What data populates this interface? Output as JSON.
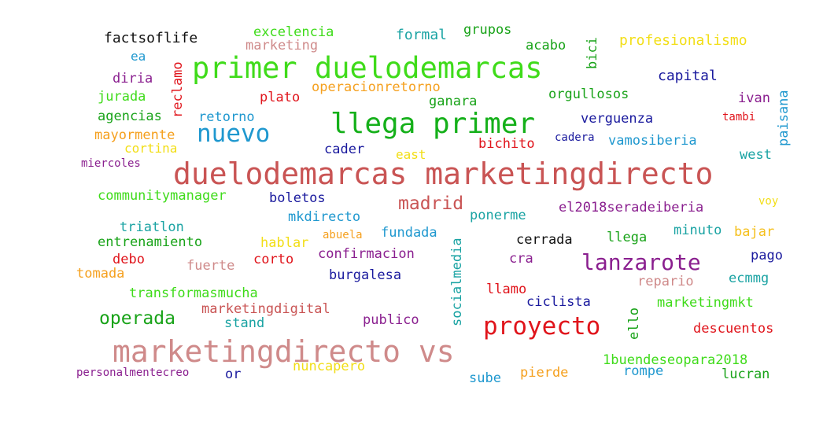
{
  "words": [
    {
      "text": "duelodemarcas marketingdirecto",
      "color": "#c95454"
    },
    {
      "text": "marketingdirecto vs",
      "color": "#cf8a8a"
    },
    {
      "text": "primer duelodemarcas",
      "color": "#3fdb1a"
    },
    {
      "text": "llega primer",
      "color": "#15b01a"
    },
    {
      "text": "nuevo",
      "color": "#1f98cf"
    },
    {
      "text": "proyecto",
      "color": "#e0141b"
    },
    {
      "text": "lanzarote",
      "color": "#8a1f8f"
    },
    {
      "text": "madrid",
      "color": "#c95454"
    },
    {
      "text": "operada",
      "color": "#19a319"
    },
    {
      "text": "factsoflife",
      "color": "#111111"
    },
    {
      "text": "excelencia",
      "color": "#3fdb1a"
    },
    {
      "text": "marketing",
      "color": "#cf8a8a"
    },
    {
      "text": "formal",
      "color": "#1aa3a3"
    },
    {
      "text": "grupos",
      "color": "#19a319"
    },
    {
      "text": "acabo",
      "color": "#19a319"
    },
    {
      "text": "bici",
      "color": "#19a319"
    },
    {
      "text": "profesionalismo",
      "color": "#f2de16"
    },
    {
      "text": "ea",
      "color": "#1f98cf"
    },
    {
      "text": "reclamo",
      "color": "#e0141b"
    },
    {
      "text": "diria",
      "color": "#8a1f8f"
    },
    {
      "text": "jurada",
      "color": "#3fdb1a"
    },
    {
      "text": "operacionretorno",
      "color": "#f5a01e"
    },
    {
      "text": "plato",
      "color": "#e0141b"
    },
    {
      "text": "ganara",
      "color": "#19a319"
    },
    {
      "text": "orgullosos",
      "color": "#19a319"
    },
    {
      "text": "capital",
      "color": "#1a1a9e"
    },
    {
      "text": "ivan",
      "color": "#8a1f8f"
    },
    {
      "text": "paisana",
      "color": "#1f98cf"
    },
    {
      "text": "agencias",
      "color": "#19a319"
    },
    {
      "text": "retorno",
      "color": "#1f98cf"
    },
    {
      "text": "verguenza",
      "color": "#1a1a9e"
    },
    {
      "text": "tambi",
      "color": "#e0141b"
    },
    {
      "text": "mayormente",
      "color": "#f5a01e"
    },
    {
      "text": "cortina",
      "color": "#f2de16"
    },
    {
      "text": "cader",
      "color": "#1a1a9e"
    },
    {
      "text": "bichito",
      "color": "#e0141b"
    },
    {
      "text": "cadera",
      "color": "#1a1a9e"
    },
    {
      "text": "vamosiberia",
      "color": "#1f98cf"
    },
    {
      "text": "east",
      "color": "#f2de16"
    },
    {
      "text": "west",
      "color": "#1aa3a3"
    },
    {
      "text": "miercoles",
      "color": "#8a1f8f"
    },
    {
      "text": "communitymanager",
      "color": "#3fdb1a"
    },
    {
      "text": "boletos",
      "color": "#1a1a9e"
    },
    {
      "text": "voy",
      "color": "#f2de16"
    },
    {
      "text": "mkdirecto",
      "color": "#1f98cf"
    },
    {
      "text": "ponerme",
      "color": "#1aa3a3"
    },
    {
      "text": "el2018seradeiberia",
      "color": "#8a1f8f"
    },
    {
      "text": "triatlon",
      "color": "#1aa3a3"
    },
    {
      "text": "minuto",
      "color": "#1aa3a3"
    },
    {
      "text": "bajar",
      "color": "#f5c01e"
    },
    {
      "text": "entrenamiento",
      "color": "#19a319"
    },
    {
      "text": "hablar",
      "color": "#f2de16"
    },
    {
      "text": "abuela",
      "color": "#f5a01e"
    },
    {
      "text": "fundada",
      "color": "#1f98cf"
    },
    {
      "text": "socialmedia",
      "color": "#1aa3a3"
    },
    {
      "text": "cerrada",
      "color": "#111111"
    },
    {
      "text": "llega",
      "color": "#19a319"
    },
    {
      "text": "debo",
      "color": "#e0141b"
    },
    {
      "text": "corto",
      "color": "#e0141b"
    },
    {
      "text": "confirmacion",
      "color": "#8a1f8f"
    },
    {
      "text": "cra",
      "color": "#8a1f8f"
    },
    {
      "text": "pago",
      "color": "#1a1a9e"
    },
    {
      "text": "tomada",
      "color": "#f5a01e"
    },
    {
      "text": "fuerte",
      "color": "#cf8a8a"
    },
    {
      "text": "burgalesa",
      "color": "#1a1a9e"
    },
    {
      "text": "repario",
      "color": "#cf8a8a"
    },
    {
      "text": "ecmmg",
      "color": "#1aa3a3"
    },
    {
      "text": "transformasmucha",
      "color": "#3fdb1a"
    },
    {
      "text": "llamo",
      "color": "#e0141b"
    },
    {
      "text": "marketingdigital",
      "color": "#c95454"
    },
    {
      "text": "ciclista",
      "color": "#1a1a9e"
    },
    {
      "text": "marketingmkt",
      "color": "#3fdb1a"
    },
    {
      "text": "stand",
      "color": "#1aa3a3"
    },
    {
      "text": "publico",
      "color": "#8a1f8f"
    },
    {
      "text": "ello",
      "color": "#19a319"
    },
    {
      "text": "descuentos",
      "color": "#e0141b"
    },
    {
      "text": "1buendeseopara2018",
      "color": "#3fdb1a"
    },
    {
      "text": "nuncapero",
      "color": "#f2de16"
    },
    {
      "text": "personalmentecreo",
      "color": "#8a1f8f"
    },
    {
      "text": "or",
      "color": "#1a1a9e"
    },
    {
      "text": "sube",
      "color": "#1f98cf"
    },
    {
      "text": "pierde",
      "color": "#f5a01e"
    },
    {
      "text": "rompe",
      "color": "#1f98cf"
    },
    {
      "text": "lucran",
      "color": "#19a319"
    }
  ]
}
